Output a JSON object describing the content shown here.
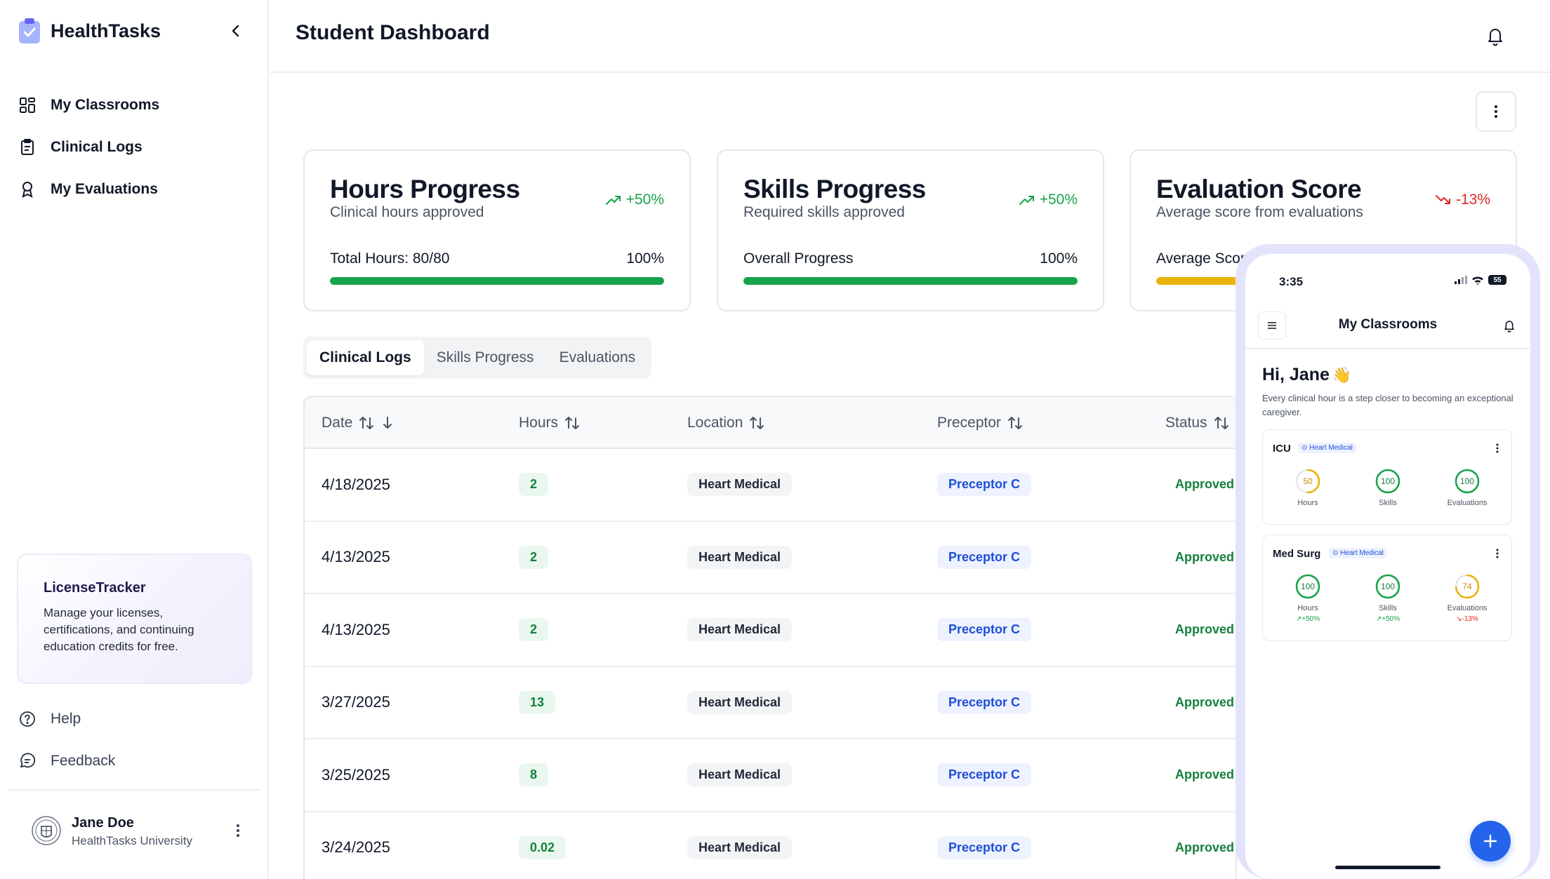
{
  "app": {
    "name": "HealthTasks",
    "logo_icon": "clipboard-check-icon"
  },
  "sidebar": {
    "items": [
      {
        "label": "My Classrooms",
        "icon": "grid-icon"
      },
      {
        "label": "Clinical Logs",
        "icon": "clipboard-icon"
      },
      {
        "label": "My Evaluations",
        "icon": "award-icon"
      }
    ],
    "promo": {
      "title": "LicenseTracker",
      "text": "Manage your licenses, certifications, and continuing education credits for free."
    },
    "bottom": [
      {
        "label": "Help",
        "icon": "help-circle-icon"
      },
      {
        "label": "Feedback",
        "icon": "message-icon"
      }
    ],
    "user": {
      "name": "Jane Doe",
      "org": "HealthTasks University"
    }
  },
  "header": {
    "title": "Student Dashboard"
  },
  "colors": {
    "accent": "#2563eb",
    "success": "#16a34a",
    "danger": "#dc2626",
    "warning": "#eab308"
  },
  "cards": [
    {
      "title": "Hours Progress",
      "subtitle": "Clinical hours approved",
      "delta": "+50%",
      "trend": "up",
      "label": "Total Hours: 80/80",
      "percent_text": "100%",
      "progress": 1.0,
      "bar_color": "#16a34a"
    },
    {
      "title": "Skills Progress",
      "subtitle": "Required skills approved",
      "delta": "+50%",
      "trend": "up",
      "label": "Overall Progress",
      "percent_text": "100%",
      "progress": 1.0,
      "bar_color": "#16a34a"
    },
    {
      "title": "Evaluation Score",
      "subtitle": "Average score from evaluations",
      "delta": "-13%",
      "trend": "down",
      "label": "Average Scor",
      "percent_text": "",
      "progress": 0.74,
      "bar_color": "#eab308"
    }
  ],
  "tabs": [
    {
      "label": "Clinical Logs",
      "active": true
    },
    {
      "label": "Skills Progress",
      "active": false
    },
    {
      "label": "Evaluations",
      "active": false
    }
  ],
  "table": {
    "columns": [
      "Date",
      "Hours",
      "Location",
      "Preceptor",
      "Status"
    ],
    "rows": [
      {
        "date": "4/18/2025",
        "hours": "2",
        "location": "Heart Medical",
        "preceptor": "Preceptor C",
        "status": "Approved"
      },
      {
        "date": "4/13/2025",
        "hours": "2",
        "location": "Heart Medical",
        "preceptor": "Preceptor C",
        "status": "Approved"
      },
      {
        "date": "4/13/2025",
        "hours": "2",
        "location": "Heart Medical",
        "preceptor": "Preceptor C",
        "status": "Approved"
      },
      {
        "date": "3/27/2025",
        "hours": "13",
        "location": "Heart Medical",
        "preceptor": "Preceptor C",
        "status": "Approved"
      },
      {
        "date": "3/25/2025",
        "hours": "8",
        "location": "Heart Medical",
        "preceptor": "Preceptor C",
        "status": "Approved"
      },
      {
        "date": "3/24/2025",
        "hours": "0.02",
        "location": "Heart Medical",
        "preceptor": "Preceptor C",
        "status": "Approved"
      }
    ]
  },
  "phone": {
    "time": "3:35",
    "battery": "55",
    "title": "My Classrooms",
    "greeting": "Hi, Jane",
    "greeting_emoji": "👋",
    "tagline": "Every clinical hour is a step closer to becoming an exceptional caregiver.",
    "classrooms": [
      {
        "name": "ICU",
        "location": "Heart Medical",
        "metrics": [
          {
            "label": "Hours",
            "value": "50",
            "fraction": 0.5,
            "color": "#eab308",
            "delta": ""
          },
          {
            "label": "Skills",
            "value": "100",
            "fraction": 1.0,
            "color": "#16a34a",
            "delta": ""
          },
          {
            "label": "Evaluations",
            "value": "100",
            "fraction": 1.0,
            "color": "#16a34a",
            "delta": ""
          }
        ]
      },
      {
        "name": "Med Surg",
        "location": "Heart Medical",
        "metrics": [
          {
            "label": "Hours",
            "value": "100",
            "fraction": 1.0,
            "color": "#16a34a",
            "delta": "+50%",
            "trend": "up"
          },
          {
            "label": "Skills",
            "value": "100",
            "fraction": 1.0,
            "color": "#16a34a",
            "delta": "+50%",
            "trend": "up"
          },
          {
            "label": "Evaluations",
            "value": "74",
            "fraction": 0.74,
            "color": "#eab308",
            "delta": "-13%",
            "trend": "down"
          }
        ]
      }
    ]
  }
}
